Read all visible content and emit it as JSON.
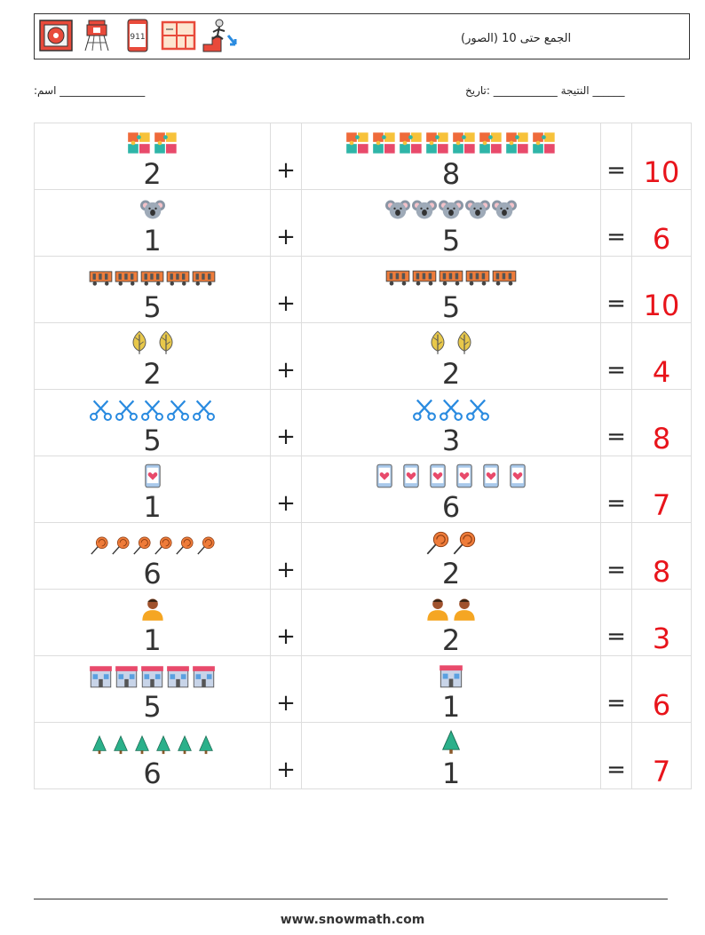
{
  "header": {
    "title": "(الجمع حتى 10 (الصور",
    "icons": [
      "alarm-button-icon",
      "water-tower-icon",
      "phone-911-icon",
      "floor-plan-icon",
      "stairs-exit-icon"
    ]
  },
  "info": {
    "name_label": ":اسم",
    "name_blank": "________________",
    "date_label": ":تاريخ",
    "date_blank": "______",
    "score_label": "النتيجة",
    "score_blank": "____________"
  },
  "rows": [
    {
      "a": 2,
      "b": 8,
      "icon": "puzzle",
      "sum": 10
    },
    {
      "a": 1,
      "b": 5,
      "icon": "koala",
      "sum": 6
    },
    {
      "a": 5,
      "b": 5,
      "icon": "train-wagon",
      "sum": 10
    },
    {
      "a": 2,
      "b": 2,
      "icon": "leaf",
      "sum": 4
    },
    {
      "a": 5,
      "b": 3,
      "icon": "scissors",
      "sum": 8
    },
    {
      "a": 1,
      "b": 6,
      "icon": "phone-heart",
      "sum": 7
    },
    {
      "a": 6,
      "b": 2,
      "icon": "lollipop",
      "sum": 8
    },
    {
      "a": 1,
      "b": 2,
      "icon": "person",
      "sum": 3
    },
    {
      "a": 5,
      "b": 1,
      "icon": "shop",
      "sum": 6
    },
    {
      "a": 6,
      "b": 1,
      "icon": "tree",
      "sum": 7
    }
  ],
  "symbols": {
    "plus": "+",
    "equals": "="
  },
  "footer": "www.snowmath.com"
}
